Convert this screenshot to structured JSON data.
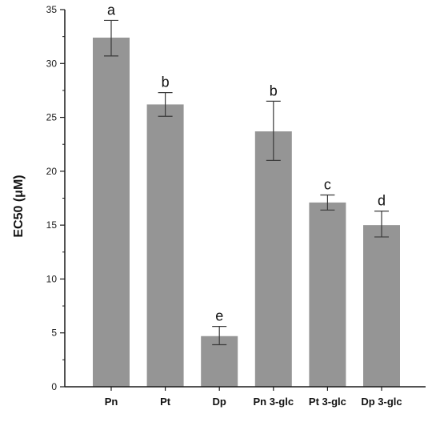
{
  "chart_data": {
    "type": "bar",
    "categories": [
      "Pn",
      "Pt",
      "Dp",
      "Pn 3-glc",
      "Pt 3-glc",
      "Dp 3-glc"
    ],
    "values": [
      32.4,
      26.2,
      4.7,
      23.7,
      17.1,
      15.0
    ],
    "error_low": [
      30.7,
      25.1,
      3.9,
      21.0,
      16.4,
      13.9
    ],
    "error_high": [
      34.0,
      27.3,
      5.6,
      26.5,
      17.8,
      16.3
    ],
    "significance_letters": [
      "a",
      "b",
      "e",
      "b",
      "c",
      "d"
    ],
    "xlabel": "",
    "ylabel": "EC50 (μM)",
    "ylim": [
      0,
      35
    ],
    "yticks": [
      0,
      5,
      10,
      15,
      20,
      25,
      30,
      35
    ],
    "grid": false,
    "bar_color": "#959595",
    "axis_color": "#1a1a1a"
  }
}
